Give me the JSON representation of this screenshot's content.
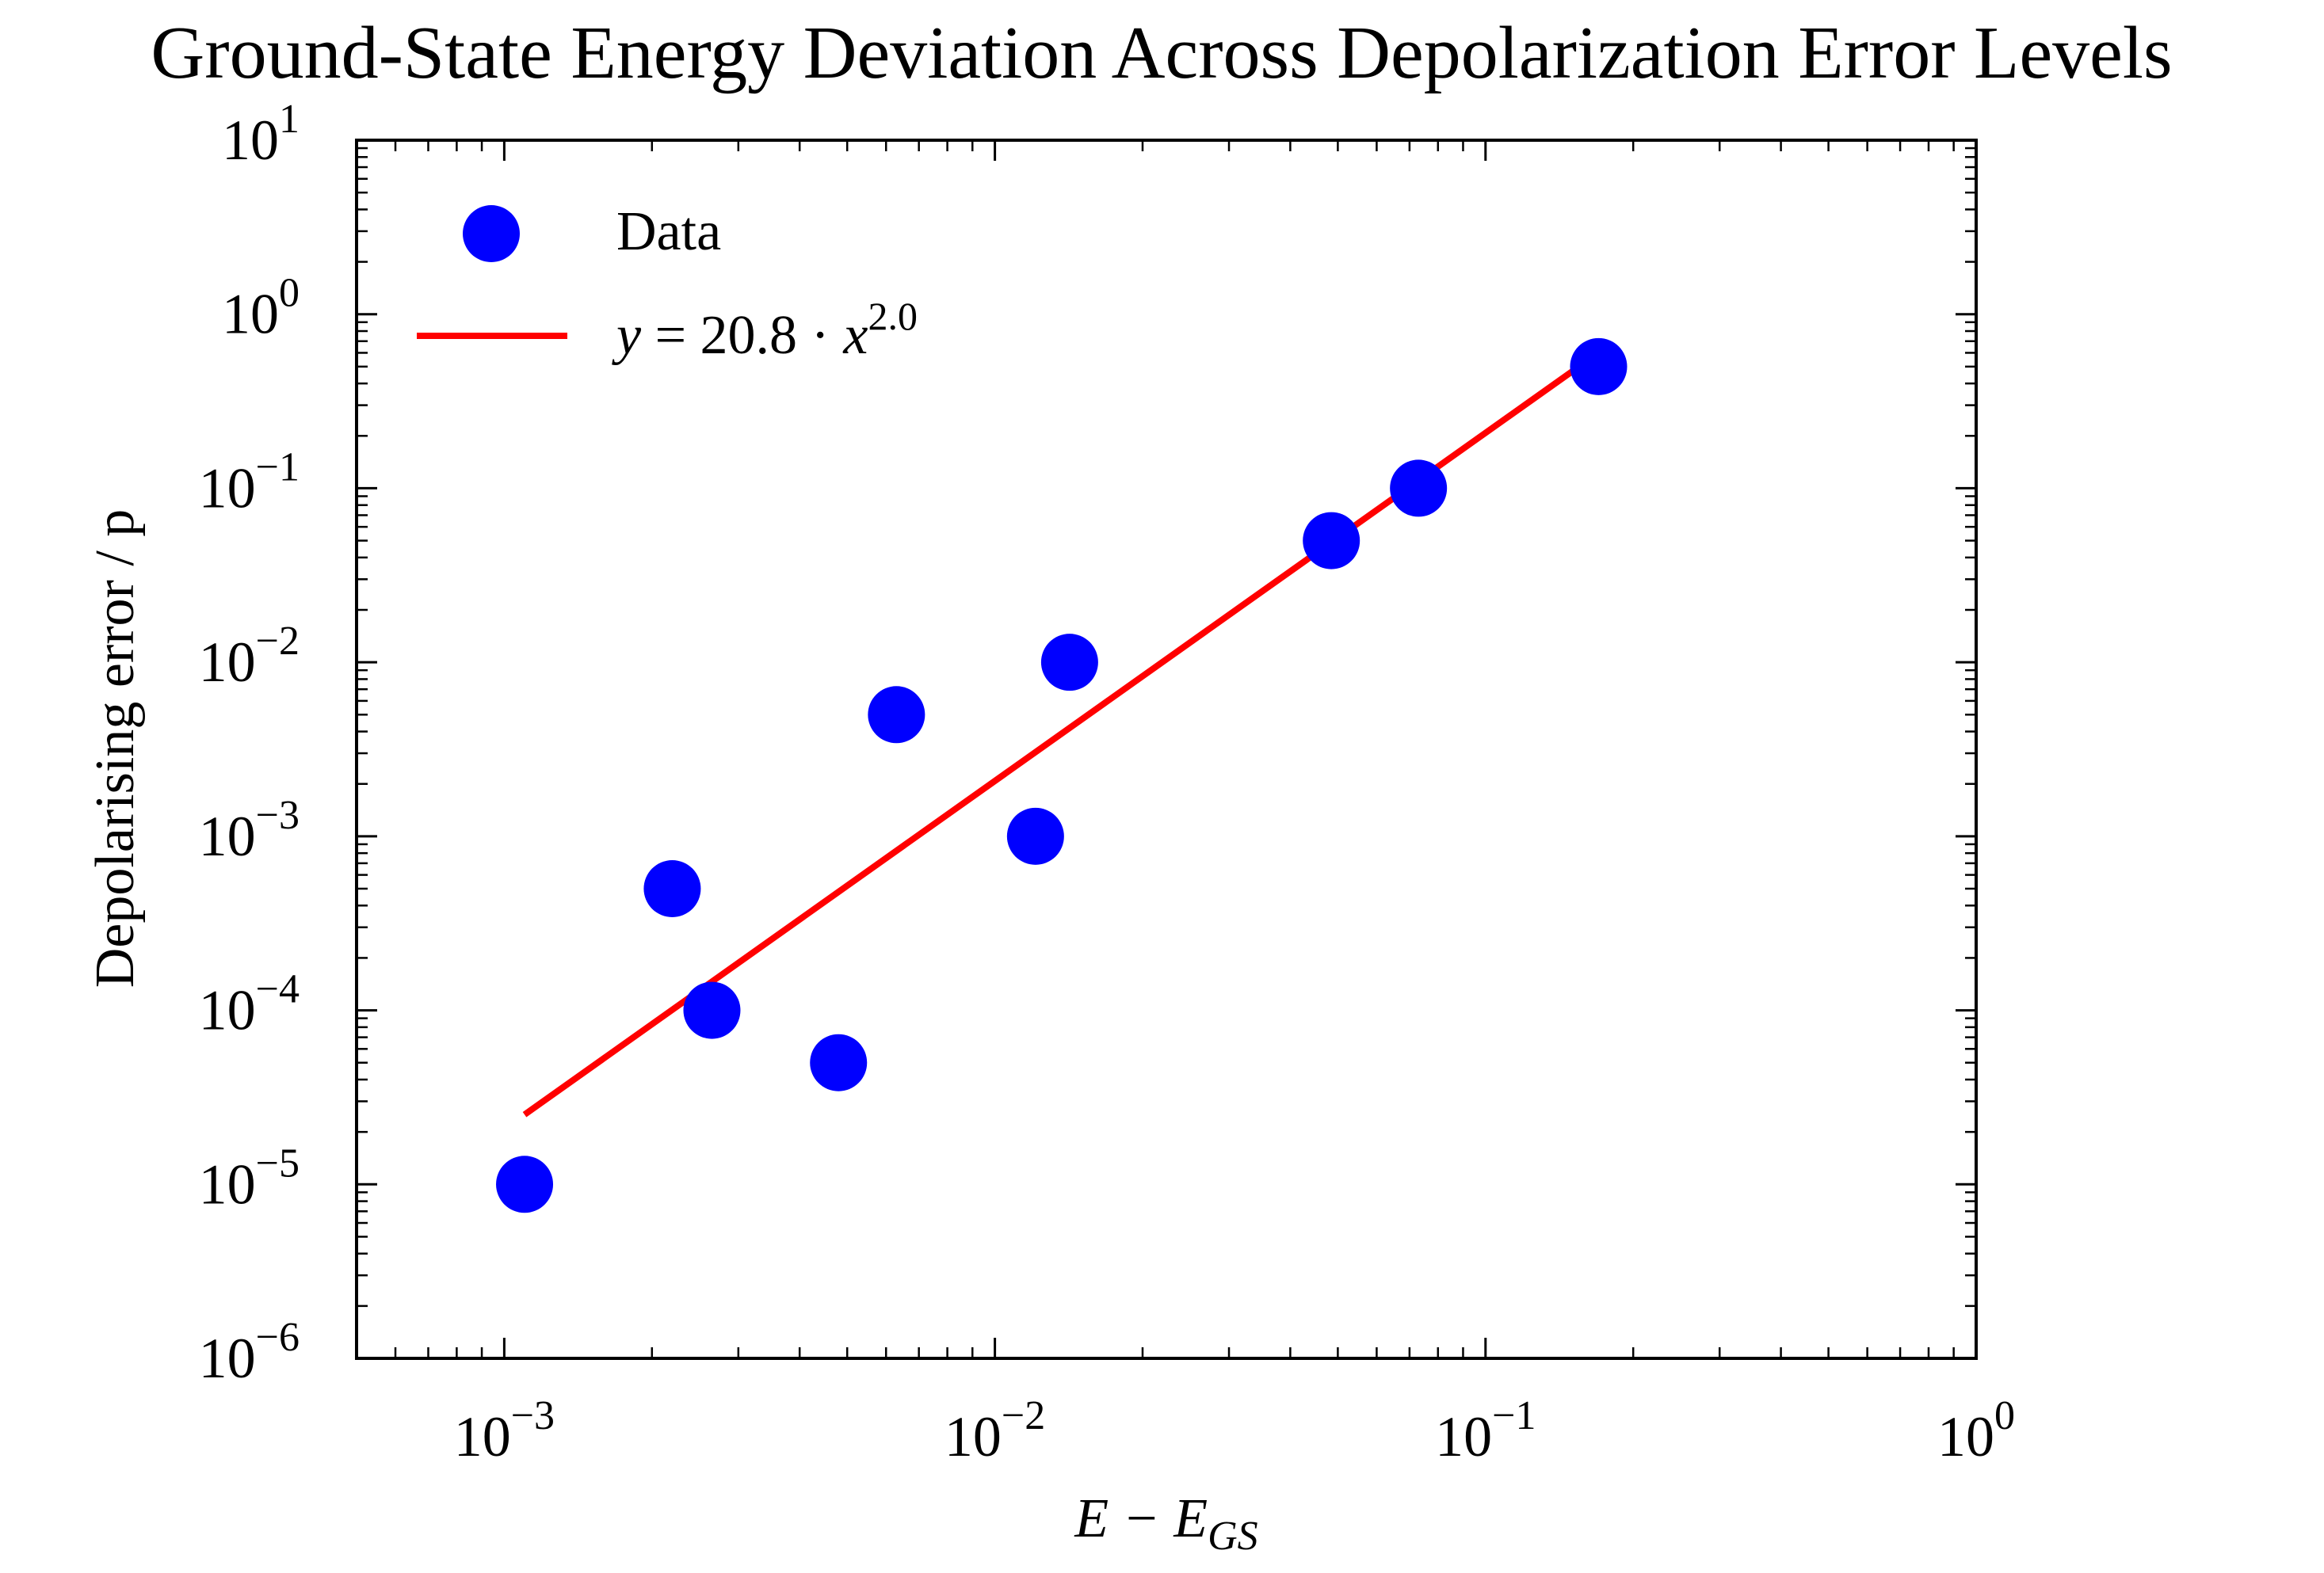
{
  "chart_data": {
    "type": "scatter",
    "title": "Ground-State Energy Deviation Across Depolarization Error Levels",
    "xlabel": {
      "main": "E − E",
      "sub": "GS"
    },
    "ylabel": "Depolarising error / p",
    "xscale": "log",
    "yscale": "log",
    "xlim": [
      0.0005,
      1.0
    ],
    "ylim": [
      1e-06,
      10
    ],
    "x_ticks": [
      {
        "value": 0.001,
        "base": "10",
        "exp": "−3"
      },
      {
        "value": 0.01,
        "base": "10",
        "exp": "−2"
      },
      {
        "value": 0.1,
        "base": "10",
        "exp": "−1"
      },
      {
        "value": 1,
        "base": "10",
        "exp": "0"
      }
    ],
    "y_ticks": [
      {
        "value": 1e-06,
        "base": "10",
        "exp": "−6"
      },
      {
        "value": 1e-05,
        "base": "10",
        "exp": "−5"
      },
      {
        "value": 0.0001,
        "base": "10",
        "exp": "−4"
      },
      {
        "value": 0.001,
        "base": "10",
        "exp": "−3"
      },
      {
        "value": 0.01,
        "base": "10",
        "exp": "−2"
      },
      {
        "value": 0.1,
        "base": "10",
        "exp": "−1"
      },
      {
        "value": 1,
        "base": "10",
        "exp": "0"
      },
      {
        "value": 10,
        "base": "10",
        "exp": "1"
      }
    ],
    "series": [
      {
        "name": "Data",
        "kind": "scatter",
        "color": "#0000ff",
        "points": [
          {
            "x": 0.0011,
            "y": 1e-05
          },
          {
            "x": 0.0022,
            "y": 0.0005
          },
          {
            "x": 0.00265,
            "y": 0.0001
          },
          {
            "x": 0.0048,
            "y": 5e-05
          },
          {
            "x": 0.0063,
            "y": 0.005
          },
          {
            "x": 0.0121,
            "y": 0.001
          },
          {
            "x": 0.0142,
            "y": 0.01
          },
          {
            "x": 0.0485,
            "y": 0.05
          },
          {
            "x": 0.073,
            "y": 0.1
          },
          {
            "x": 0.17,
            "y": 0.5
          }
        ]
      },
      {
        "name": "y = 20.8 · x^2.0",
        "kind": "fit",
        "color": "#ff0000",
        "coefficient": 20.8,
        "exponent": 2.0,
        "x_range": [
          0.0011,
          0.17
        ]
      }
    ],
    "legend": {
      "position": "top-left",
      "entries": [
        {
          "marker": "circle",
          "color": "#0000ff",
          "label": "Data"
        },
        {
          "marker": "line",
          "color": "#ff0000",
          "label_parts": {
            "lhs": "y",
            "eq": " = 20.8 · ",
            "var": "x",
            "exp": "2.0"
          }
        }
      ]
    },
    "grid": false
  }
}
